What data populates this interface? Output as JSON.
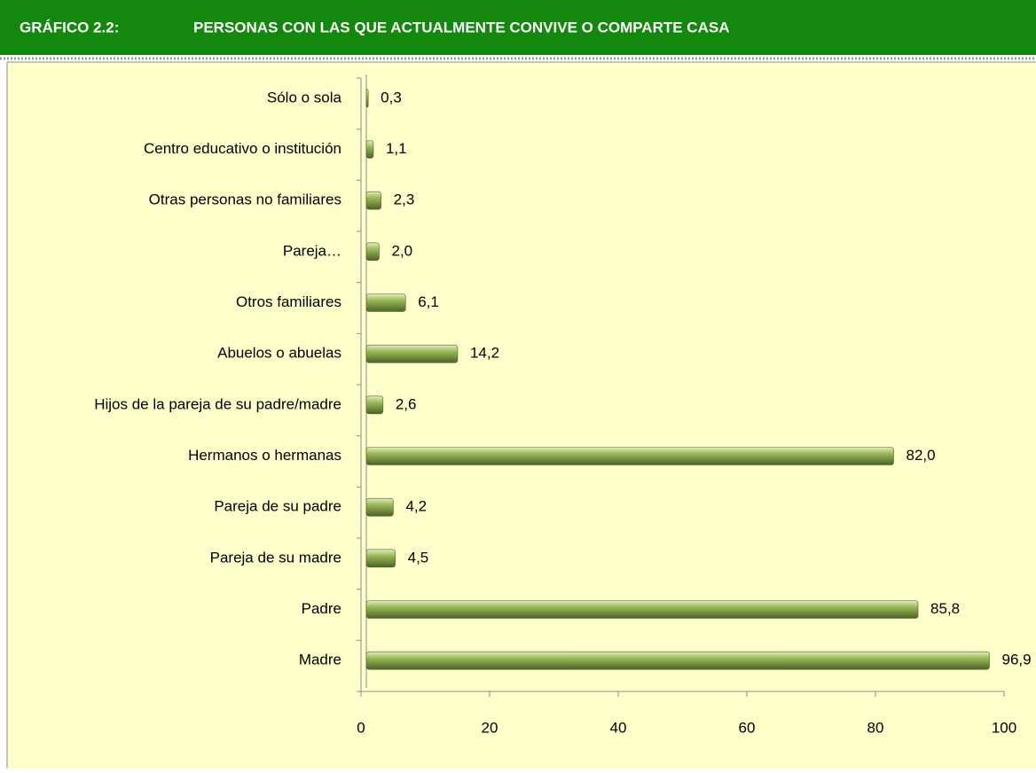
{
  "chart_data": {
    "type": "bar",
    "orientation": "horizontal",
    "title_number": "GRÁFICO 2.2:",
    "title": "PERSONAS CON LAS QUE ACTUALMENTE CONVIVE O COMPARTE CASA",
    "categories": [
      "Sólo o sola",
      "Centro educativo o institución",
      "Otras personas no familiares",
      "Pareja…",
      "Otros familiares",
      "Abuelos o abuelas",
      "Hijos de la pareja de su padre/madre",
      "Hermanos o hermanas",
      "Pareja de su padre",
      "Pareja de su madre",
      "Padre",
      "Madre"
    ],
    "values": [
      0.3,
      1.1,
      2.3,
      2.0,
      6.1,
      14.2,
      2.6,
      82.0,
      4.2,
      4.5,
      85.8,
      96.9
    ],
    "value_labels": [
      "0,3",
      "1,1",
      "2,3",
      "2,0",
      "6,1",
      "14,2",
      "2,6",
      "82,0",
      "4,2",
      "4,5",
      "85,8",
      "96,9"
    ],
    "color": "#9bbb59",
    "xlim": [
      0,
      100
    ],
    "xticks": [
      0,
      20,
      40,
      60,
      80,
      100
    ]
  }
}
